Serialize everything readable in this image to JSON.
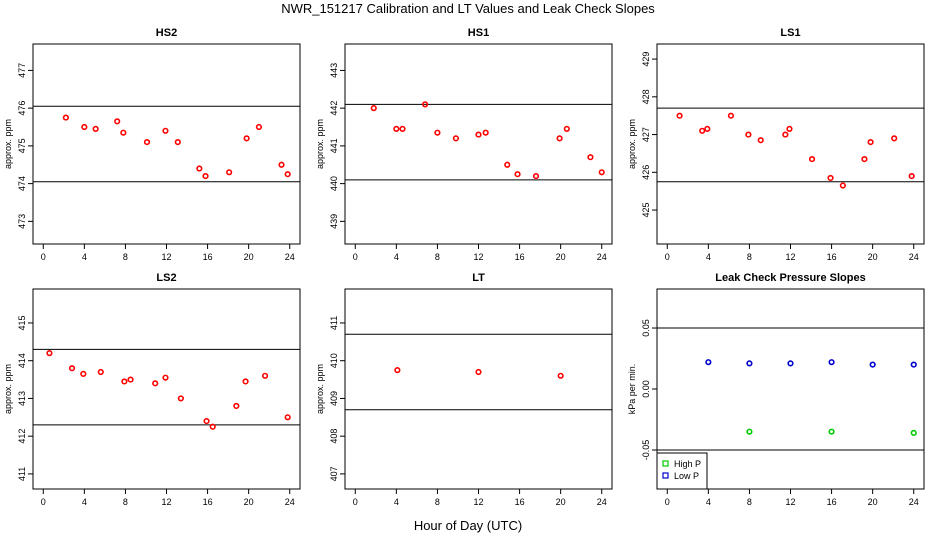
{
  "figure": {
    "title": "NWR_151217  Calibration and LT Values and Leak Check Slopes",
    "xlabel": "Hour of Day (UTC)"
  },
  "chart_data": [
    {
      "type": "scatter",
      "title": "HS2",
      "ylabel": "approx. ppm",
      "xlim": [
        -1,
        25
      ],
      "ylim": [
        472.4,
        477.7
      ],
      "xticks": [
        0,
        4,
        8,
        12,
        16,
        20,
        24
      ],
      "yticks": [
        473,
        474,
        475,
        476,
        477
      ],
      "hlines": [
        476.05,
        474.05
      ],
      "series": [
        {
          "marker": "circle",
          "color": "#ff0000",
          "x": [
            2.2,
            4.0,
            5.1,
            7.2,
            7.8,
            10.1,
            11.9,
            13.1,
            15.2,
            15.8,
            18.1,
            19.8,
            21.0,
            23.2,
            23.8
          ],
          "y": [
            475.75,
            475.5,
            475.45,
            475.65,
            475.35,
            475.1,
            475.4,
            475.1,
            474.4,
            474.2,
            474.3,
            475.2,
            475.5,
            474.5,
            474.25
          ]
        }
      ]
    },
    {
      "type": "scatter",
      "title": "HS1",
      "ylabel": "approx. ppm",
      "xlim": [
        -1,
        25
      ],
      "ylim": [
        438.4,
        443.7
      ],
      "xticks": [
        0,
        4,
        8,
        12,
        16,
        20,
        24
      ],
      "yticks": [
        439,
        440,
        441,
        442,
        443
      ],
      "hlines": [
        442.1,
        440.1
      ],
      "series": [
        {
          "marker": "circle",
          "color": "#ff0000",
          "x": [
            1.8,
            4.0,
            4.6,
            6.8,
            8.0,
            9.8,
            12.0,
            12.7,
            14.8,
            15.8,
            17.6,
            19.9,
            20.6,
            22.9,
            24.0
          ],
          "y": [
            442.0,
            441.45,
            441.45,
            442.1,
            441.35,
            441.2,
            441.3,
            441.35,
            440.5,
            440.25,
            440.2,
            441.2,
            441.45,
            440.7,
            440.3
          ]
        }
      ]
    },
    {
      "type": "scatter",
      "title": "LS1",
      "ylabel": "approx. ppm",
      "xlim": [
        -1,
        25
      ],
      "ylim": [
        424.1,
        429.4
      ],
      "xticks": [
        0,
        4,
        8,
        12,
        16,
        20,
        24
      ],
      "yticks": [
        425,
        426,
        427,
        428,
        429
      ],
      "hlines": [
        427.7,
        425.75
      ],
      "series": [
        {
          "marker": "circle",
          "color": "#ff0000",
          "x": [
            1.2,
            3.4,
            3.9,
            6.2,
            7.9,
            9.1,
            11.5,
            11.9,
            14.1,
            15.9,
            17.1,
            19.2,
            19.8,
            22.1,
            23.8
          ],
          "y": [
            427.5,
            427.1,
            427.15,
            427.5,
            427.0,
            426.85,
            427.0,
            427.15,
            426.35,
            425.85,
            425.65,
            426.35,
            426.8,
            426.9,
            425.9
          ]
        }
      ]
    },
    {
      "type": "scatter",
      "title": "LS2",
      "ylabel": "approx. ppm",
      "xlim": [
        -1,
        25
      ],
      "ylim": [
        410.6,
        415.9
      ],
      "xticks": [
        0,
        4,
        8,
        12,
        16,
        20,
        24
      ],
      "yticks": [
        411,
        412,
        413,
        414,
        415
      ],
      "hlines": [
        414.3,
        412.3
      ],
      "series": [
        {
          "marker": "circle",
          "color": "#ff0000",
          "x": [
            0.6,
            2.8,
            3.9,
            5.6,
            7.9,
            8.5,
            10.9,
            11.9,
            13.4,
            15.9,
            16.5,
            18.8,
            19.7,
            21.6,
            23.8
          ],
          "y": [
            414.2,
            413.8,
            413.65,
            413.7,
            413.45,
            413.5,
            413.4,
            413.55,
            413.0,
            412.4,
            412.25,
            412.8,
            413.45,
            413.6,
            412.5
          ]
        }
      ]
    },
    {
      "type": "scatter",
      "title": "LT",
      "ylabel": "approx. ppm",
      "xlim": [
        -1,
        25
      ],
      "ylim": [
        406.6,
        411.9
      ],
      "xticks": [
        0,
        4,
        8,
        12,
        16,
        20,
        24
      ],
      "yticks": [
        407,
        408,
        409,
        410,
        411
      ],
      "hlines": [
        410.7,
        408.7
      ],
      "series": [
        {
          "marker": "circle",
          "color": "#ff0000",
          "x": [
            4.1,
            12.0,
            20.0
          ],
          "y": [
            409.75,
            409.7,
            409.6
          ]
        }
      ]
    },
    {
      "type": "scatter",
      "title": "Leak Check Pressure Slopes",
      "ylabel": "kPa per min.",
      "xlim": [
        -1,
        25
      ],
      "ylim": [
        -0.082,
        0.082
      ],
      "xticks": [
        0,
        4,
        8,
        12,
        16,
        20,
        24
      ],
      "yticks": [
        -0.05,
        0.0,
        0.05
      ],
      "ytick_labels": [
        "-0.05",
        "0.00",
        "0.05"
      ],
      "hlines": [
        0.05,
        -0.05
      ],
      "legend": {
        "position": "bottom-left",
        "entries": [
          "High P",
          "Low P"
        ]
      },
      "series": [
        {
          "name": "High P",
          "marker": "circle",
          "color": "#00cc00",
          "x": [
            8.0,
            16.0,
            24.0
          ],
          "y": [
            -0.035,
            -0.035,
            -0.036
          ]
        },
        {
          "name": "Low P",
          "marker": "circle",
          "color": "#0000cc",
          "x": [
            4.0,
            8.0,
            12.0,
            16.0,
            20.0,
            24.0
          ],
          "y": [
            0.022,
            0.021,
            0.021,
            0.022,
            0.02,
            0.02
          ]
        }
      ]
    }
  ]
}
